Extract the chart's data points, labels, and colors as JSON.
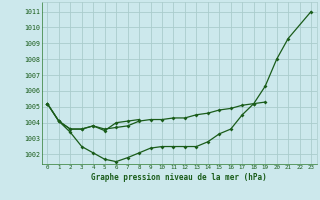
{
  "title": "Graphe pression niveau de la mer (hPa)",
  "background_color": "#cce8ec",
  "grid_color": "#aacccc",
  "line_color": "#1a5c1a",
  "axis_color": "#2d7a2d",
  "xlim": [
    -0.5,
    23.5
  ],
  "ylim": [
    1001.4,
    1011.6
  ],
  "yticks": [
    1002,
    1003,
    1004,
    1005,
    1006,
    1007,
    1008,
    1009,
    1010,
    1011
  ],
  "xticks": [
    0,
    1,
    2,
    3,
    4,
    5,
    6,
    7,
    8,
    9,
    10,
    11,
    12,
    13,
    14,
    15,
    16,
    17,
    18,
    19,
    20,
    21,
    22,
    23
  ],
  "series1_x": [
    0,
    1,
    2,
    3,
    4,
    5,
    6,
    7,
    8,
    9,
    10,
    11,
    12,
    13,
    14,
    15,
    16,
    17,
    18,
    19,
    20,
    21,
    23
  ],
  "series1_y": [
    1005.2,
    1004.1,
    1003.4,
    1002.5,
    1002.1,
    1001.7,
    1001.55,
    1001.8,
    1002.1,
    1002.4,
    1002.5,
    1002.5,
    1002.5,
    1002.5,
    1002.8,
    1003.3,
    1003.6,
    1004.5,
    1005.2,
    1006.3,
    1008.0,
    1009.3,
    1011.0
  ],
  "series2_x": [
    0,
    1,
    2,
    3,
    4,
    5,
    6,
    7,
    8,
    9,
    10,
    11,
    12,
    13,
    14,
    15,
    16,
    17,
    18,
    19
  ],
  "series2_y": [
    1005.2,
    1004.1,
    1003.6,
    1003.6,
    1003.8,
    1003.6,
    1003.7,
    1003.8,
    1004.1,
    1004.2,
    1004.2,
    1004.3,
    1004.3,
    1004.5,
    1004.6,
    1004.8,
    1004.9,
    1005.1,
    1005.2,
    1005.3
  ],
  "series3_x": [
    0,
    1,
    2,
    3,
    4,
    5,
    6,
    7,
    8
  ],
  "series3_y": [
    1005.2,
    1004.1,
    1003.6,
    1003.6,
    1003.8,
    1003.5,
    1004.0,
    1004.1,
    1004.2
  ]
}
